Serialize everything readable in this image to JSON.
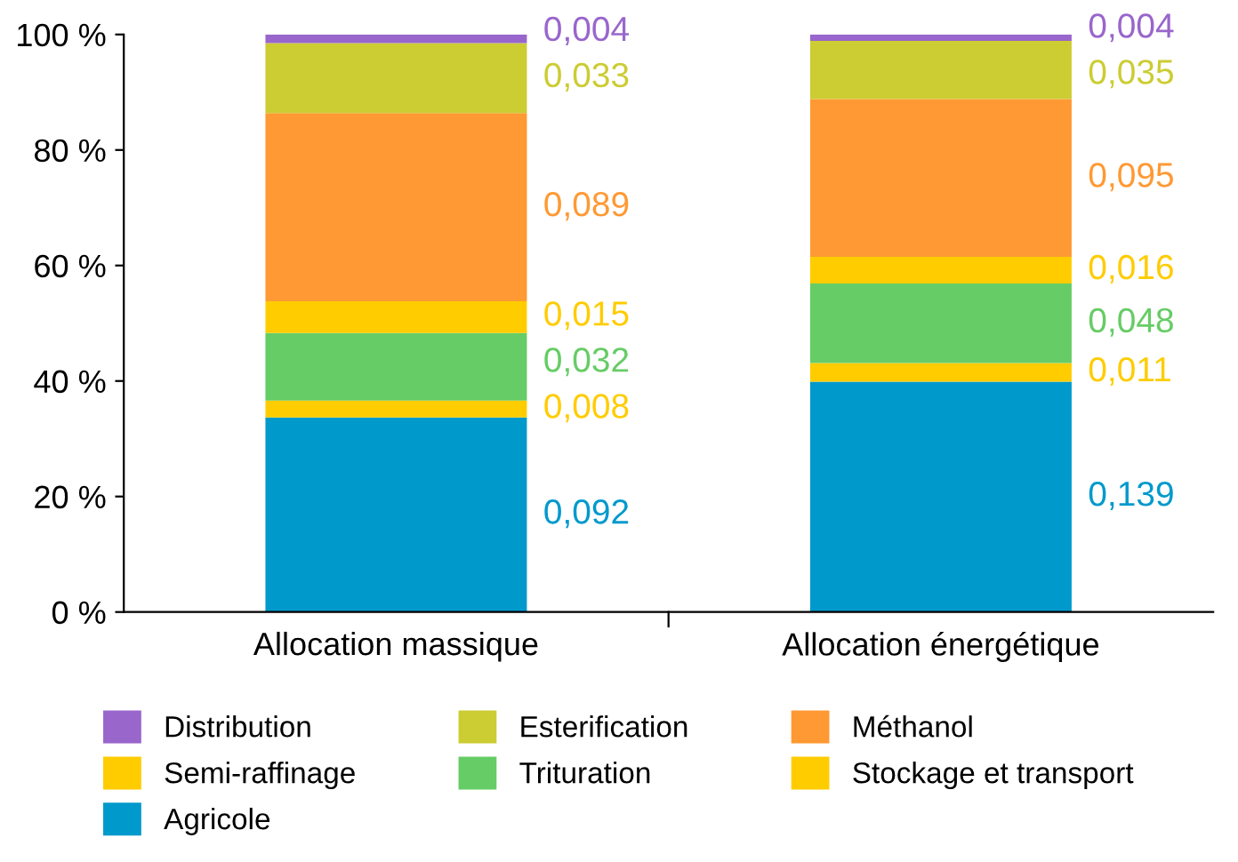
{
  "chart_data": {
    "type": "bar",
    "stacked": true,
    "categories": [
      "Allocation massique",
      "Allocation énergétique"
    ],
    "ylim": [
      0,
      100
    ],
    "yticks": [
      {
        "value": 0,
        "label": "0 %"
      },
      {
        "value": 20,
        "label": "20 %"
      },
      {
        "value": 40,
        "label": "40 %"
      },
      {
        "value": 60,
        "label": "60 %"
      },
      {
        "value": 80,
        "label": "80 %"
      },
      {
        "value": 100,
        "label": "100 %"
      }
    ],
    "grid": false,
    "legend": "bottom",
    "series": [
      {
        "name": "Agricole",
        "color": "#0099cc",
        "values": [
          33.7,
          39.9
        ]
      },
      {
        "name": "Stockage et transport",
        "color": "#ffcc00",
        "values": [
          2.9,
          3.2
        ]
      },
      {
        "name": "Trituration",
        "color": "#66cc66",
        "values": [
          11.7,
          13.8
        ]
      },
      {
        "name": "Semi-raffinage",
        "color": "#ffcc00",
        "values": [
          5.5,
          4.6
        ]
      },
      {
        "name": "Méthanol",
        "color": "#ff9933",
        "values": [
          32.6,
          27.3
        ]
      },
      {
        "name": "Esterification",
        "color": "#cccc33",
        "values": [
          12.1,
          10.1
        ]
      },
      {
        "name": "Distribution",
        "color": "#9966cc",
        "values": [
          1.5,
          1.1
        ]
      }
    ],
    "annotations": [
      "0,092",
      "0,139",
      "0,008",
      "0,011",
      "0,032",
      "0,048",
      "0,015",
      "0,016",
      "0,089",
      "0,095",
      "0,033",
      "0,035",
      "0,004",
      "0,004"
    ]
  }
}
